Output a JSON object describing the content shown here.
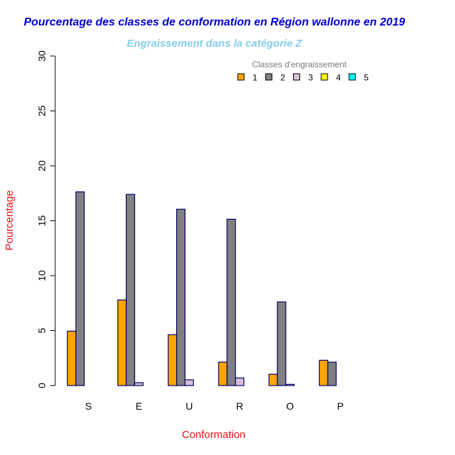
{
  "chart_data": {
    "type": "bar",
    "title": "Pourcentage des classes de conformation en Région wallonne en 2019",
    "subtitle": "Engraissement dans la catégorie Z",
    "xlabel": "Conformation",
    "ylabel": "Pourcentage",
    "ylim": [
      0,
      30
    ],
    "yticks": [
      "0",
      "5",
      "10",
      "15",
      "20",
      "25",
      "30"
    ],
    "categories": [
      "S",
      "E",
      "U",
      "R",
      "O",
      "P"
    ],
    "grid": false,
    "legend": {
      "title": "Classes d'engraissement",
      "placement": "top-right"
    },
    "series": [
      {
        "name": "1",
        "color": "#FFA500",
        "values": [
          4.95,
          7.79,
          4.63,
          2.13,
          1.03,
          2.3
        ]
      },
      {
        "name": "2",
        "color": "#808080",
        "values": [
          17.63,
          17.4,
          16.05,
          15.14,
          7.61,
          2.13
        ]
      },
      {
        "name": "3",
        "color": "#D8BFD8",
        "values": [
          0,
          0.26,
          0.52,
          0.69,
          0.11,
          0
        ]
      },
      {
        "name": "4",
        "color": "#FFFF00",
        "values": [
          0,
          0,
          0,
          0,
          0,
          0
        ]
      },
      {
        "name": "5",
        "color": "#00FFFF",
        "values": [
          0,
          0,
          0,
          0,
          0,
          0
        ]
      }
    ],
    "bar_border_color": "#000066",
    "title_color": "#0000CD",
    "subtitle_color": "#87CEEB",
    "axis_title_color": "#E8121A"
  }
}
